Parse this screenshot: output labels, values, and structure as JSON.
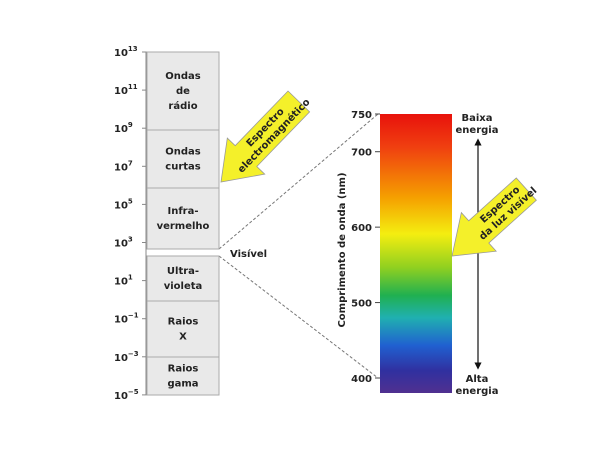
{
  "left_scale": {
    "ticks": [
      {
        "base": "10",
        "exponent": "13"
      },
      {
        "base": "10",
        "exponent": "11"
      },
      {
        "base": "10",
        "exponent": "9"
      },
      {
        "base": "10",
        "exponent": "7"
      },
      {
        "base": "10",
        "exponent": "5"
      },
      {
        "base": "10",
        "exponent": "3"
      },
      {
        "base": "10",
        "exponent": "1"
      },
      {
        "base": "10",
        "exponent": "−1"
      },
      {
        "base": "10",
        "exponent": "−3"
      },
      {
        "base": "10",
        "exponent": "−5"
      }
    ]
  },
  "bands": [
    {
      "lines": [
        "Ondas",
        "de",
        "rádio"
      ]
    },
    {
      "lines": [
        "Ondas",
        "curtas"
      ]
    },
    {
      "lines": [
        "Infra-",
        "vermelho"
      ]
    },
    {
      "lines": [
        "Ultra-",
        "violeta"
      ]
    },
    {
      "lines": [
        "Raios",
        "X"
      ]
    },
    {
      "lines": [
        "Raios",
        "gama"
      ]
    }
  ],
  "visible_label": "Visível",
  "arrows": [
    {
      "lines": [
        "Espectro",
        "electromagnético"
      ]
    },
    {
      "lines": [
        "Espectro",
        "da luz visível"
      ]
    }
  ],
  "visible_scale": {
    "axis_label": "Comprimento de onda (nm)",
    "ticks": [
      750,
      700,
      600,
      500,
      400
    ]
  },
  "energy": {
    "top": [
      "Baixa",
      "energia"
    ],
    "bottom": [
      "Alta",
      "energia"
    ]
  }
}
